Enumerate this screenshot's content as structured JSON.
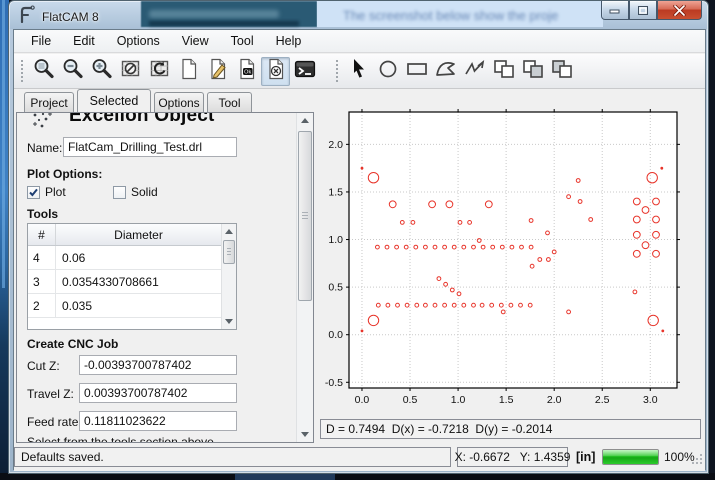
{
  "window": {
    "title": "FlatCAM 8",
    "background_ghost_text": "The screenshot below show the proje"
  },
  "menu": {
    "items": [
      "File",
      "Edit",
      "Options",
      "View",
      "Tool",
      "Help"
    ]
  },
  "toolbar": {
    "group1": [
      "zoom-fit",
      "zoom-out",
      "zoom-in",
      "clear-plot",
      "replot",
      "new-file",
      "edit-object",
      "save-object",
      "delete-object",
      "shell"
    ],
    "group2": [
      "select",
      "draw-circle",
      "draw-rectangle",
      "draw-polygon",
      "draw-path",
      "union",
      "subtract",
      "intersect"
    ],
    "pressed": "delete-object"
  },
  "tabs": {
    "items": [
      "Project",
      "Selected",
      "Options",
      "Tool"
    ],
    "active": "Selected",
    "widths": [
      50,
      74,
      50,
      45
    ]
  },
  "panel": {
    "heading": "Excellon Object",
    "name_label": "Name:",
    "name_value": "FlatCam_Drilling_Test.drl",
    "plot_options_label": "Plot Options:",
    "plot_checkbox": {
      "label": "Plot",
      "checked": true
    },
    "solid_checkbox": {
      "label": "Solid",
      "checked": false
    },
    "tools_label": "Tools",
    "table": {
      "headers": [
        "#",
        "Diameter"
      ],
      "rows": [
        [
          "4",
          "0.06"
        ],
        [
          "3",
          "0.0354330708661"
        ],
        [
          "2",
          "0.035"
        ]
      ]
    },
    "cnc": {
      "heading": "Create CNC Job",
      "fields": [
        {
          "label": "Cut Z:",
          "value": "-0.00393700787402"
        },
        {
          "label": "Travel Z:",
          "value": "0.00393700787402"
        },
        {
          "label": "Feed rate:",
          "value": "0.11811023622"
        }
      ],
      "note": "Select from the tools section above"
    }
  },
  "plot_status": "D = 0.7494  D(x) = -0.7218  D(y) = -0.2014",
  "status_bar": {
    "message": "Defaults saved.",
    "coords": "X: -0.6672   Y: 1.4359",
    "units": "[in]",
    "progress_pct": 100,
    "progress_label": "100%"
  },
  "colors": {
    "drill": "#e8342a",
    "grid": "#c9c9c9",
    "progress_green": "#2ccb2c"
  },
  "chart_data": {
    "type": "scatter",
    "title": "",
    "xlabel": "",
    "ylabel": "",
    "xlim": [
      -0.135,
      3.278
    ],
    "ylim": [
      -0.56,
      2.34
    ],
    "x_ticks": [
      0.0,
      0.5,
      1.0,
      1.5,
      2.0,
      2.5,
      3.0
    ],
    "x_tick_labels": [
      "0.0",
      "0.5",
      "1.0",
      "1.5",
      "2.0",
      "2.5",
      "3.0"
    ],
    "y_ticks": [
      -0.5,
      0.0,
      0.5,
      1.0,
      1.5,
      2.0
    ],
    "y_tick_labels": [
      "-0.5",
      "0.0",
      "0.5",
      "1.0",
      "1.5",
      "2.0"
    ],
    "grid": "dotted",
    "marker": "open-circle",
    "size_radius_px": {
      "xs": 0.9,
      "s": 1.9,
      "m": 3.4,
      "l": 5.2
    },
    "points": [
      [
        0.0,
        1.75,
        "xs"
      ],
      [
        3.12,
        1.75,
        "xs"
      ],
      [
        0.0,
        0.04,
        "xs"
      ],
      [
        3.13,
        0.04,
        "xs"
      ],
      [
        0.12,
        1.65,
        "l"
      ],
      [
        3.02,
        1.65,
        "l"
      ],
      [
        0.12,
        0.15,
        "l"
      ],
      [
        3.03,
        0.15,
        "l"
      ],
      [
        0.32,
        1.37,
        "m"
      ],
      [
        0.73,
        1.37,
        "m"
      ],
      [
        0.91,
        1.37,
        "m"
      ],
      [
        1.32,
        1.37,
        "m"
      ],
      [
        2.86,
        1.4,
        "m"
      ],
      [
        3.06,
        1.4,
        "m"
      ],
      [
        2.95,
        1.31,
        "m"
      ],
      [
        2.86,
        1.21,
        "m"
      ],
      [
        3.06,
        1.21,
        "m"
      ],
      [
        2.86,
        1.05,
        "m"
      ],
      [
        3.06,
        1.05,
        "m"
      ],
      [
        2.95,
        0.94,
        "m"
      ],
      [
        2.86,
        0.85,
        "m"
      ],
      [
        3.06,
        0.85,
        "m"
      ],
      [
        0.42,
        1.18,
        "s"
      ],
      [
        0.53,
        1.18,
        "s"
      ],
      [
        1.02,
        1.18,
        "s"
      ],
      [
        1.12,
        1.18,
        "s"
      ],
      [
        1.76,
        1.2,
        "s"
      ],
      [
        1.93,
        1.07,
        "s"
      ],
      [
        2.25,
        1.62,
        "s"
      ],
      [
        2.15,
        1.45,
        "s"
      ],
      [
        2.27,
        1.4,
        "s"
      ],
      [
        2.38,
        1.21,
        "s"
      ],
      [
        1.22,
        0.99,
        "s"
      ],
      [
        2.84,
        0.45,
        "s"
      ],
      [
        1.47,
        0.24,
        "s"
      ],
      [
        2.15,
        0.24,
        "s"
      ],
      [
        0.16,
        0.92,
        "s"
      ],
      [
        0.26,
        0.92,
        "s"
      ],
      [
        0.36,
        0.92,
        "s"
      ],
      [
        0.46,
        0.92,
        "s"
      ],
      [
        0.56,
        0.92,
        "s"
      ],
      [
        0.66,
        0.92,
        "s"
      ],
      [
        0.76,
        0.92,
        "s"
      ],
      [
        0.86,
        0.92,
        "s"
      ],
      [
        0.96,
        0.92,
        "s"
      ],
      [
        1.06,
        0.92,
        "s"
      ],
      [
        1.16,
        0.92,
        "s"
      ],
      [
        1.26,
        0.92,
        "s"
      ],
      [
        1.36,
        0.92,
        "s"
      ],
      [
        1.46,
        0.92,
        "s"
      ],
      [
        1.56,
        0.92,
        "s"
      ],
      [
        1.66,
        0.92,
        "s"
      ],
      [
        1.76,
        0.92,
        "s"
      ],
      [
        0.17,
        0.31,
        "s"
      ],
      [
        0.27,
        0.31,
        "s"
      ],
      [
        0.37,
        0.31,
        "s"
      ],
      [
        0.47,
        0.31,
        "s"
      ],
      [
        0.57,
        0.31,
        "s"
      ],
      [
        0.66,
        0.31,
        "s"
      ],
      [
        0.76,
        0.31,
        "s"
      ],
      [
        0.86,
        0.31,
        "s"
      ],
      [
        0.96,
        0.31,
        "s"
      ],
      [
        1.06,
        0.31,
        "s"
      ],
      [
        1.16,
        0.31,
        "s"
      ],
      [
        1.25,
        0.31,
        "s"
      ],
      [
        1.35,
        0.31,
        "s"
      ],
      [
        1.45,
        0.31,
        "s"
      ],
      [
        1.55,
        0.31,
        "s"
      ],
      [
        1.65,
        0.31,
        "s"
      ],
      [
        1.75,
        0.31,
        "s"
      ],
      [
        0.8,
        0.59,
        "s"
      ],
      [
        0.87,
        0.53,
        "s"
      ],
      [
        0.94,
        0.47,
        "s"
      ],
      [
        1.01,
        0.43,
        "s"
      ],
      [
        1.77,
        0.72,
        "s"
      ],
      [
        1.85,
        0.79,
        "s"
      ],
      [
        1.94,
        0.79,
        "s"
      ],
      [
        2.0,
        0.87,
        "s"
      ]
    ]
  }
}
